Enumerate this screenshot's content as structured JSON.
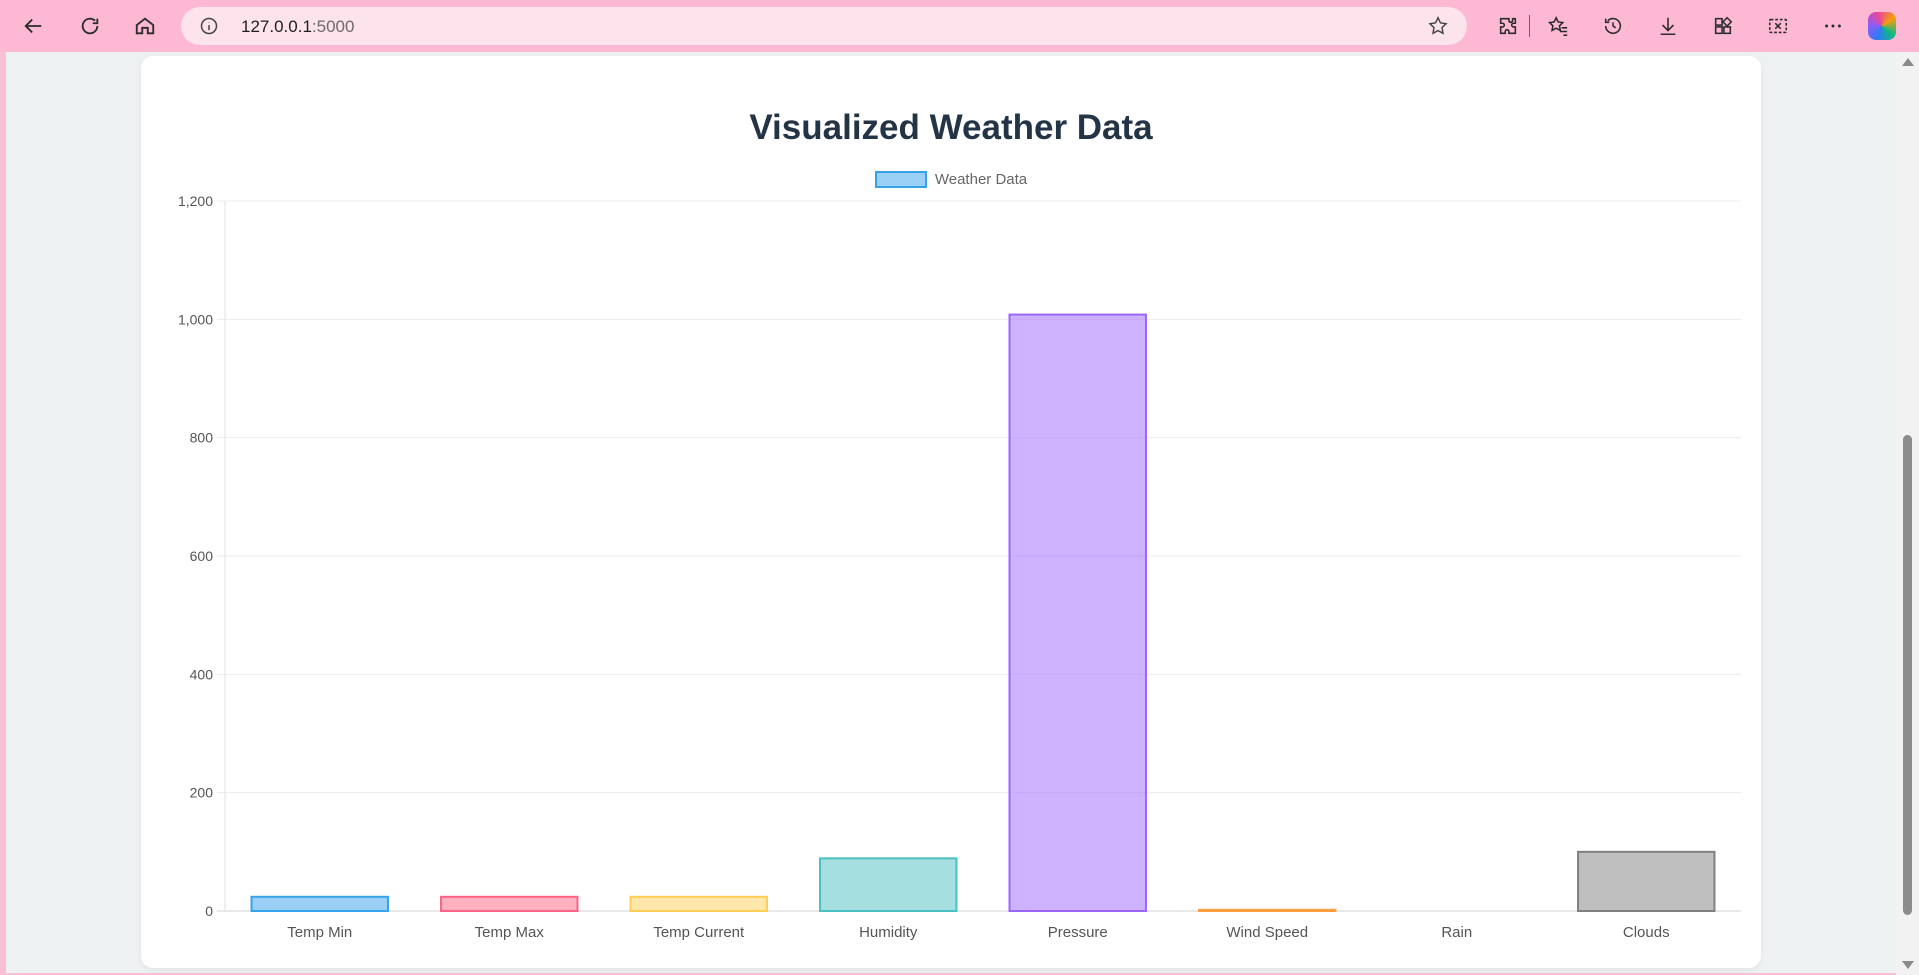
{
  "browser": {
    "url_host": "127.0.0.1",
    "url_port": ":5000"
  },
  "chart_data": {
    "type": "bar",
    "title": "Visualized Weather Data",
    "categories": [
      "Temp Min",
      "Temp Max",
      "Temp Current",
      "Humidity",
      "Pressure",
      "Wind Speed",
      "Rain",
      "Clouds"
    ],
    "series": [
      {
        "name": "Weather Data",
        "values": [
          24,
          24,
          24,
          89,
          1008,
          2,
          0,
          100
        ]
      }
    ],
    "ylim": [
      0,
      1200
    ],
    "yticks": [
      0,
      200,
      400,
      600,
      800,
      1000,
      1200
    ],
    "ytick_labels": [
      "0",
      "200",
      "400",
      "600",
      "800",
      "1,000",
      "1,200"
    ],
    "legend_position": "top-center",
    "grid": true,
    "colors": {
      "fills": [
        "rgba(54,162,235,0.5)",
        "rgba(255,99,132,0.5)",
        "rgba(255,206,86,0.5)",
        "rgba(75,192,192,0.5)",
        "rgba(153,102,255,0.5)",
        "rgba(255,159,64,0.5)",
        "rgba(201,203,207,0.5)",
        "rgba(128,128,128,0.5)"
      ],
      "borders": [
        "#36a2eb",
        "#ff6384",
        "#ffce56",
        "#4bc0c0",
        "#9966ff",
        "#ff9f40",
        "#c9cbcf",
        "#808080"
      ],
      "legend_fill": "rgba(54,162,235,0.5)",
      "legend_border": "#36a2eb"
    }
  }
}
